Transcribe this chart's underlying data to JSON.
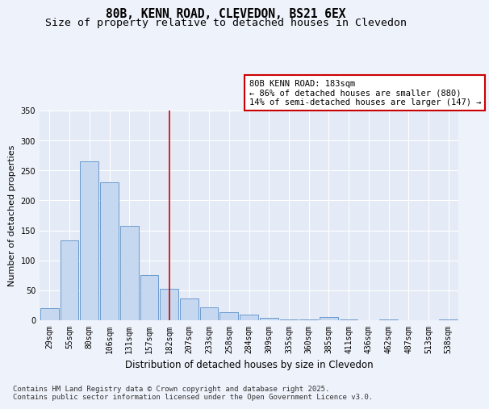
{
  "title_line1": "80B, KENN ROAD, CLEVEDON, BS21 6EX",
  "title_line2": "Size of property relative to detached houses in Clevedon",
  "xlabel": "Distribution of detached houses by size in Clevedon",
  "ylabel": "Number of detached properties",
  "categories": [
    "29sqm",
    "55sqm",
    "80sqm",
    "106sqm",
    "131sqm",
    "157sqm",
    "182sqm",
    "207sqm",
    "233sqm",
    "258sqm",
    "284sqm",
    "309sqm",
    "335sqm",
    "360sqm",
    "385sqm",
    "411sqm",
    "436sqm",
    "462sqm",
    "487sqm",
    "513sqm",
    "538sqm"
  ],
  "values": [
    20,
    133,
    265,
    230,
    158,
    75,
    53,
    37,
    22,
    13,
    9,
    4,
    1,
    1,
    5,
    1,
    0,
    1,
    0,
    0,
    1
  ],
  "bar_color": "#c5d8f0",
  "bar_edge_color": "#5b8fc9",
  "vline_x_index": 6,
  "vline_color": "#cc0000",
  "annotation_line1": "80B KENN ROAD: 183sqm",
  "annotation_line2": "← 86% of detached houses are smaller (880)",
  "annotation_line3": "14% of semi-detached houses are larger (147) →",
  "annotation_box_color": "#ffffff",
  "annotation_box_edge_color": "#cc0000",
  "ylim": [
    0,
    350
  ],
  "yticks": [
    0,
    50,
    100,
    150,
    200,
    250,
    300,
    350
  ],
  "background_color": "#eef2fa",
  "plot_bg_color": "#e4eaf6",
  "footer_line1": "Contains HM Land Registry data © Crown copyright and database right 2025.",
  "footer_line2": "Contains public sector information licensed under the Open Government Licence v3.0.",
  "title_fontsize": 10.5,
  "subtitle_fontsize": 9.5,
  "xlabel_fontsize": 8.5,
  "ylabel_fontsize": 8,
  "tick_fontsize": 7,
  "annotation_fontsize": 7.5,
  "footer_fontsize": 6.5
}
